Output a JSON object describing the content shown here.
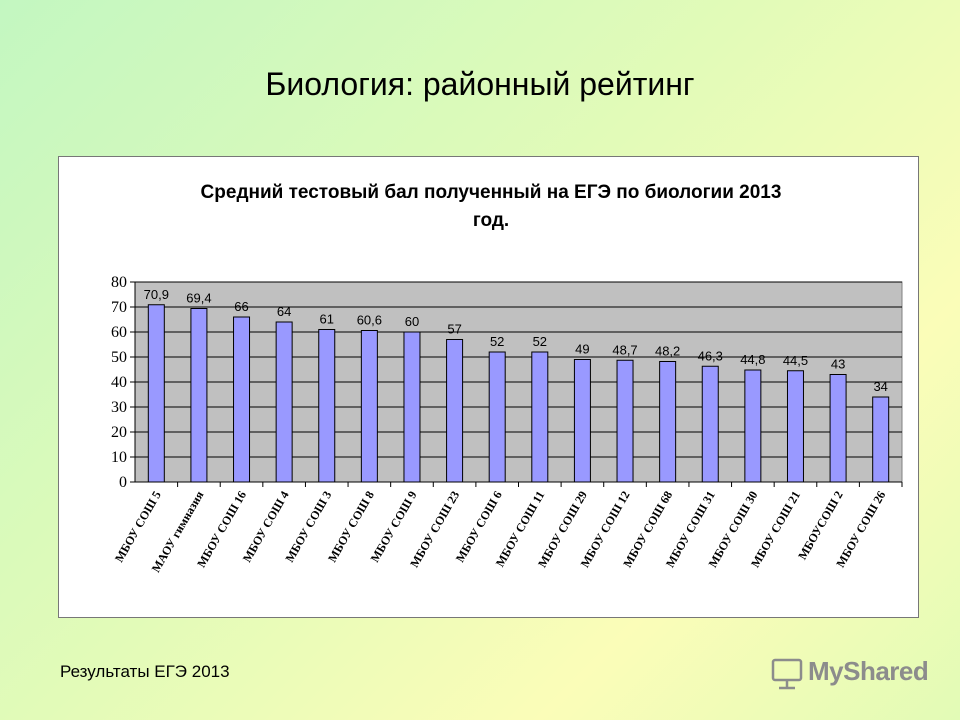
{
  "slide": {
    "title": "Биология: районный рейтинг",
    "footer": "Результаты ЕГЭ 2013",
    "brand": "MyShared"
  },
  "chart_data": {
    "type": "bar",
    "title_lines": [
      "Средний тестовый бал полученный на ЕГЭ по биологии 2013",
      "год."
    ],
    "categories": [
      "МБОУ СОШ 5",
      "МАОУ гимназия",
      "МБОУ СОШ 16",
      "МБОУ СОШ 4",
      "МБОУ СОШ 3",
      "МБОУ СОШ 8",
      "МБОУ СОШ 9",
      "МБОУ СОШ 23",
      "МБОУ СОШ 6",
      "МБОУ СОШ 11",
      "МБОУ СОШ 29",
      "МБОУ СОШ 12",
      "МБОУ СОШ 68",
      "МБОУ СОШ 31",
      "МБОУ СОШ 30",
      "МБОУ СОШ 21",
      "МБОУСОШ 2",
      "МБОУ СОШ 26"
    ],
    "values": [
      70.9,
      69.4,
      66,
      64,
      61,
      60.6,
      60,
      57,
      52,
      52,
      49,
      48.7,
      48.2,
      46.3,
      44.8,
      44.5,
      43,
      34
    ],
    "data_labels": [
      "70,9",
      "69,4",
      "66",
      "64",
      "61",
      "60,6",
      "60",
      "57",
      "52",
      "52",
      "49",
      "48,7",
      "48,2",
      "46,3",
      "44,8",
      "44,5",
      "43",
      "34"
    ],
    "ylim": [
      0,
      80
    ],
    "yticks": [
      0,
      10,
      20,
      30,
      40,
      50,
      60,
      70,
      80
    ],
    "grid": true,
    "legend": "none",
    "colors": {
      "bar": "#9999ff",
      "bar_stroke": "#000000",
      "plot_bg": "#c0c0c0"
    }
  }
}
